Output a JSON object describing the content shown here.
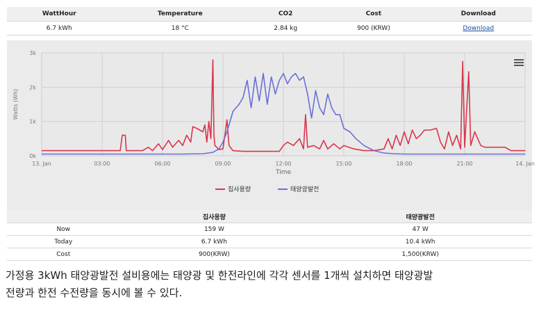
{
  "summary": {
    "headers": [
      "WattHour",
      "Temperature",
      "CO2",
      "Cost",
      "Download"
    ],
    "values": [
      "6.7 kWh",
      "18 °C",
      "2.84 kg",
      "900 (KRW)",
      "Download"
    ]
  },
  "chart_data": {
    "type": "line",
    "ylabel": "Watts (Wh)",
    "xlabel": "Time",
    "y_ticks": [
      "0k",
      "1k",
      "2k",
      "3k"
    ],
    "ylim": [
      0,
      3000
    ],
    "x_ticks": [
      "13. Jan",
      "03:00",
      "06:00",
      "09:00",
      "12:00",
      "15:00",
      "18:00",
      "21:00",
      "14. Jan"
    ],
    "xlim_hours": [
      0,
      24
    ],
    "grid": true,
    "legend_position": "bottom-center",
    "series": [
      {
        "name": "집사용량",
        "color": "#d9354b",
        "points": [
          [
            0,
            150
          ],
          [
            2,
            150
          ],
          [
            3.9,
            150
          ],
          [
            4,
            600
          ],
          [
            4.15,
            600
          ],
          [
            4.2,
            150
          ],
          [
            5,
            150
          ],
          [
            5.3,
            250
          ],
          [
            5.5,
            150
          ],
          [
            5.8,
            350
          ],
          [
            6,
            180
          ],
          [
            6.3,
            450
          ],
          [
            6.5,
            250
          ],
          [
            6.8,
            450
          ],
          [
            7,
            300
          ],
          [
            7.2,
            600
          ],
          [
            7.4,
            400
          ],
          [
            7.5,
            850
          ],
          [
            7.7,
            800
          ],
          [
            8,
            700
          ],
          [
            8.1,
            900
          ],
          [
            8.2,
            400
          ],
          [
            8.3,
            1000
          ],
          [
            8.4,
            500
          ],
          [
            8.5,
            2800
          ],
          [
            8.55,
            600
          ],
          [
            8.6,
            300
          ],
          [
            8.8,
            180
          ],
          [
            9,
            200
          ],
          [
            9.2,
            1050
          ],
          [
            9.3,
            300
          ],
          [
            9.5,
            150
          ],
          [
            10,
            130
          ],
          [
            11,
            130
          ],
          [
            11.8,
            130
          ],
          [
            12,
            300
          ],
          [
            12.2,
            400
          ],
          [
            12.5,
            300
          ],
          [
            12.8,
            500
          ],
          [
            13,
            200
          ],
          [
            13.1,
            1200
          ],
          [
            13.2,
            250
          ],
          [
            13.5,
            300
          ],
          [
            13.8,
            200
          ],
          [
            14,
            450
          ],
          [
            14.2,
            200
          ],
          [
            14.5,
            350
          ],
          [
            14.8,
            200
          ],
          [
            15,
            300
          ],
          [
            15.5,
            200
          ],
          [
            16,
            150
          ],
          [
            16.5,
            150
          ],
          [
            17,
            200
          ],
          [
            17.2,
            500
          ],
          [
            17.4,
            200
          ],
          [
            17.6,
            600
          ],
          [
            17.8,
            300
          ],
          [
            18,
            700
          ],
          [
            18.2,
            350
          ],
          [
            18.4,
            750
          ],
          [
            18.6,
            500
          ],
          [
            18.8,
            600
          ],
          [
            19,
            750
          ],
          [
            19.3,
            750
          ],
          [
            19.6,
            800
          ],
          [
            19.8,
            400
          ],
          [
            20,
            200
          ],
          [
            20.2,
            700
          ],
          [
            20.4,
            300
          ],
          [
            20.6,
            600
          ],
          [
            20.8,
            200
          ],
          [
            20.9,
            2750
          ],
          [
            21,
            250
          ],
          [
            21.2,
            2450
          ],
          [
            21.3,
            300
          ],
          [
            21.5,
            700
          ],
          [
            21.8,
            300
          ],
          [
            22,
            250
          ],
          [
            22.5,
            250
          ],
          [
            23,
            250
          ],
          [
            23.3,
            150
          ],
          [
            24,
            150
          ]
        ]
      },
      {
        "name": "태양광발전",
        "color": "#6a6fd8",
        "points": [
          [
            0,
            50
          ],
          [
            7,
            50
          ],
          [
            8,
            60
          ],
          [
            8.5,
            100
          ],
          [
            8.8,
            200
          ],
          [
            9,
            400
          ],
          [
            9.2,
            700
          ],
          [
            9.5,
            1300
          ],
          [
            9.8,
            1500
          ],
          [
            10,
            1700
          ],
          [
            10.2,
            2200
          ],
          [
            10.4,
            1400
          ],
          [
            10.6,
            2300
          ],
          [
            10.8,
            1600
          ],
          [
            11,
            2400
          ],
          [
            11.2,
            1500
          ],
          [
            11.4,
            2300
          ],
          [
            11.6,
            1800
          ],
          [
            11.8,
            2200
          ],
          [
            12,
            2400
          ],
          [
            12.2,
            2100
          ],
          [
            12.4,
            2300
          ],
          [
            12.6,
            2400
          ],
          [
            12.8,
            2200
          ],
          [
            13,
            2300
          ],
          [
            13.2,
            1800
          ],
          [
            13.4,
            1100
          ],
          [
            13.6,
            1900
          ],
          [
            13.8,
            1400
          ],
          [
            14,
            1200
          ],
          [
            14.2,
            1800
          ],
          [
            14.4,
            1400
          ],
          [
            14.6,
            1200
          ],
          [
            14.8,
            1200
          ],
          [
            15,
            800
          ],
          [
            15.3,
            700
          ],
          [
            15.6,
            500
          ],
          [
            16,
            300
          ],
          [
            16.5,
            150
          ],
          [
            17,
            80
          ],
          [
            17.5,
            60
          ],
          [
            18,
            50
          ],
          [
            24,
            50
          ]
        ]
      }
    ]
  },
  "stats_table": {
    "headers": [
      "",
      "집사용량",
      "태양광발전"
    ],
    "rows": [
      [
        "Now",
        "159 W",
        "47 W"
      ],
      [
        "Today",
        "6.7 kWh",
        "10.4 kWh"
      ],
      [
        "Cost",
        "900(KRW)",
        "1,500(KRW)"
      ]
    ]
  },
  "caption": {
    "line1": "가정용 3kWh 태양광발전 설비용에는 태양광 및 한전라인에 각각 센서를 1개씩 설치하면 태양광발",
    "line2": "전량과 한전 수전량을 동시에 볼 수 있다."
  }
}
